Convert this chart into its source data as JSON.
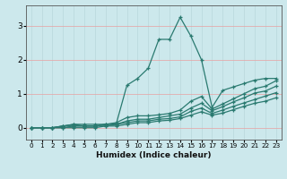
{
  "title": "",
  "xlabel": "Humidex (Indice chaleur)",
  "ylabel": "",
  "xlim": [
    -0.5,
    23.5
  ],
  "ylim": [
    -0.35,
    3.6
  ],
  "yticks": [
    0,
    1,
    2,
    3
  ],
  "xticks": [
    0,
    1,
    2,
    3,
    4,
    5,
    6,
    7,
    8,
    9,
    10,
    11,
    12,
    13,
    14,
    15,
    16,
    17,
    18,
    19,
    20,
    21,
    22,
    23
  ],
  "background_color": "#cce8ec",
  "hgrid_color": "#e8a0a0",
  "vgrid_color": "#b8d8dc",
  "line_color": "#2a7a70",
  "series": [
    [
      0.0,
      0.0,
      0.0,
      0.05,
      0.1,
      0.05,
      0.05,
      0.1,
      0.12,
      1.25,
      1.45,
      1.75,
      2.6,
      2.6,
      3.25,
      2.7,
      2.0,
      0.6,
      1.1,
      1.2,
      1.3,
      1.4,
      1.45,
      1.45
    ],
    [
      0.0,
      0.0,
      0.0,
      0.05,
      0.1,
      0.1,
      0.1,
      0.1,
      0.15,
      0.3,
      0.35,
      0.35,
      0.38,
      0.42,
      0.52,
      0.78,
      0.92,
      0.55,
      0.7,
      0.85,
      1.0,
      1.15,
      1.22,
      1.38
    ],
    [
      0.0,
      0.0,
      0.0,
      0.05,
      0.05,
      0.05,
      0.05,
      0.1,
      0.1,
      0.2,
      0.25,
      0.25,
      0.3,
      0.35,
      0.4,
      0.58,
      0.72,
      0.5,
      0.62,
      0.76,
      0.88,
      1.02,
      1.08,
      1.22
    ],
    [
      0.0,
      0.0,
      0.0,
      0.0,
      0.05,
      0.05,
      0.05,
      0.05,
      0.1,
      0.15,
      0.2,
      0.2,
      0.25,
      0.27,
      0.32,
      0.48,
      0.58,
      0.42,
      0.52,
      0.63,
      0.73,
      0.83,
      0.93,
      1.03
    ],
    [
      0.0,
      0.0,
      0.0,
      0.0,
      0.0,
      0.0,
      0.0,
      0.05,
      0.05,
      0.1,
      0.15,
      0.15,
      0.2,
      0.22,
      0.27,
      0.37,
      0.47,
      0.37,
      0.43,
      0.53,
      0.63,
      0.72,
      0.78,
      0.88
    ]
  ]
}
